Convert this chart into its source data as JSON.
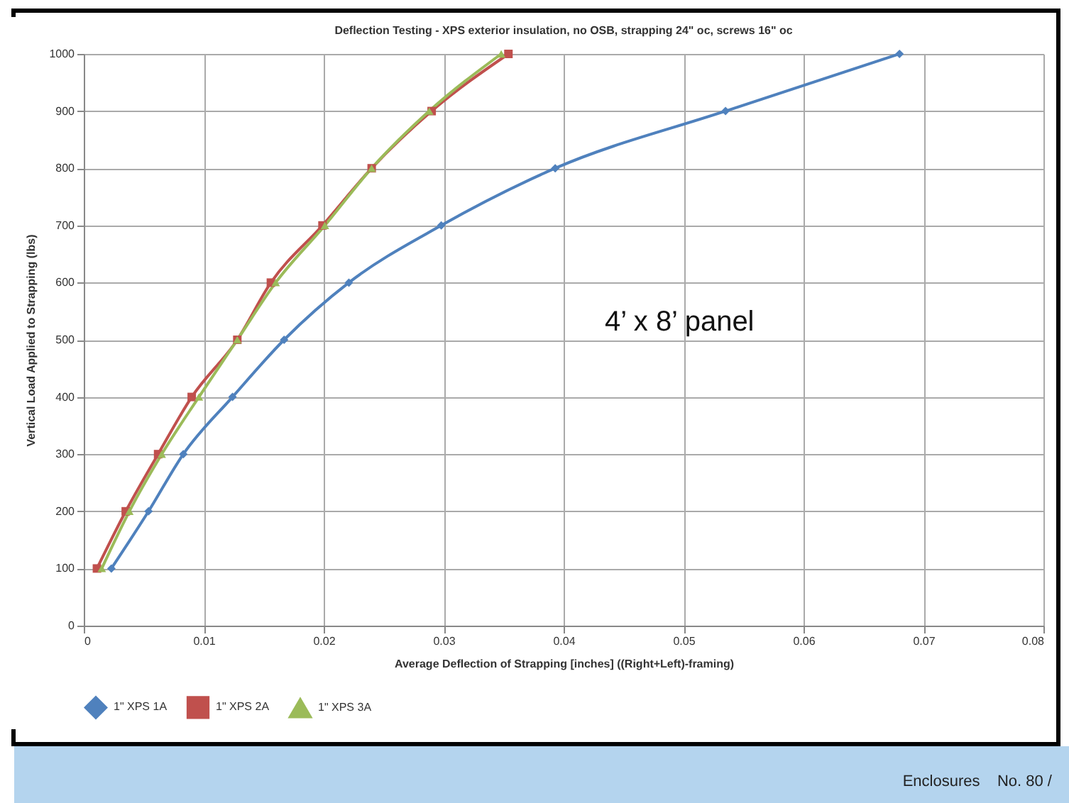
{
  "chart_data": {
    "type": "line",
    "title": "Deflection Testing - XPS exterior insulation, no OSB, strapping 24\" oc, screws 16\" oc",
    "xlabel": "Average Deflection of Strapping [inches] ((Right+Left)-framing)",
    "ylabel": "Vertical Load Applied to Strapping (lbs)",
    "annotations": [
      "4’ x 8’ panel",
      "Enclosures    No. 80 /"
    ],
    "series": [
      {
        "name": "1\" XPS 1A",
        "color": "#4f81bd",
        "marker": "diamond",
        "x": [
          0.0023,
          0.0054,
          0.0083,
          0.0124,
          0.0167,
          0.0221,
          0.0298,
          0.0393,
          0.0535,
          0.068
        ],
        "values": [
          100,
          200,
          300,
          400,
          500,
          600,
          700,
          800,
          900,
          1000
        ]
      },
      {
        "name": "1\" XPS 2A",
        "color": "#c0504d",
        "marker": "square",
        "x": [
          0.0011,
          0.0035,
          0.0062,
          0.009,
          0.0128,
          0.0156,
          0.0199,
          0.024,
          0.029,
          0.0354
        ],
        "values": [
          100,
          200,
          300,
          400,
          500,
          600,
          700,
          800,
          900,
          1000
        ]
      },
      {
        "name": "1\" XPS 3A",
        "color": "#9bbb59",
        "marker": "triangle",
        "x": [
          0.0015,
          0.0038,
          0.0065,
          0.0096,
          0.0128,
          0.016,
          0.0201,
          0.024,
          0.0288,
          0.0348
        ],
        "values": [
          100,
          200,
          300,
          400,
          500,
          600,
          700,
          800,
          900,
          1000
        ]
      }
    ],
    "xlim": [
      0,
      0.08
    ],
    "xticks": [
      0,
      0.01,
      0.02,
      0.03,
      0.04,
      0.05,
      0.06,
      0.07,
      0.08
    ],
    "ylim": [
      0,
      1000
    ],
    "yticks": [
      0,
      100,
      200,
      300,
      400,
      500,
      600,
      700,
      800,
      900,
      1000
    ],
    "grid": true,
    "legend": "bottom",
    "line_style": "solid"
  }
}
